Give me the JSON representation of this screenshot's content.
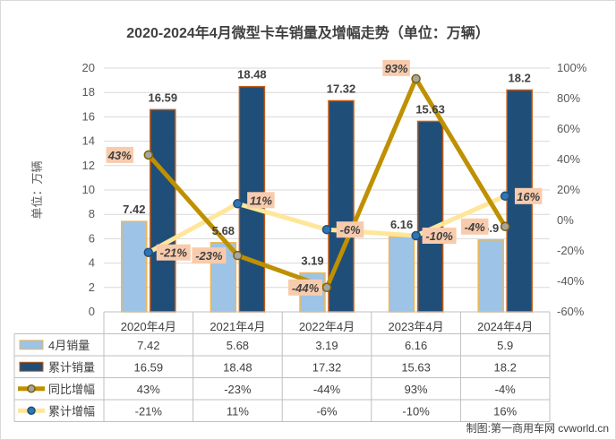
{
  "chart_data": {
    "type": "bar",
    "title": "2020-2024年4月微型卡车销量及增幅走势（单位：万辆）",
    "ylabel": "单位：万辆",
    "categories": [
      "2020年4月",
      "2021年4月",
      "2022年4月",
      "2023年4月",
      "2024年4月"
    ],
    "ylim": [
      0,
      20
    ],
    "y_ticks": [
      "0",
      "2",
      "4",
      "6",
      "8",
      "10",
      "12",
      "14",
      "16",
      "18",
      "20"
    ],
    "y2lim": [
      -60,
      100
    ],
    "y2_ticks": [
      "-60%",
      "-40%",
      "-20%",
      "0%",
      "20%",
      "40%",
      "60%",
      "80%",
      "100%"
    ],
    "grid": true,
    "series": [
      {
        "name": "4月销量",
        "type": "bar",
        "axis": "left",
        "color": "#9DC3E6",
        "values": [
          7.42,
          5.68,
          3.19,
          6.16,
          5.9
        ],
        "labels": [
          "7.42",
          "5.68",
          "3.19",
          "6.16",
          "5.9"
        ]
      },
      {
        "name": "累计销量",
        "type": "bar",
        "axis": "left",
        "color": "#1F4E79",
        "values": [
          16.59,
          18.48,
          17.32,
          15.63,
          18.2
        ],
        "labels": [
          "16.59",
          "18.48",
          "17.32",
          "15.63",
          "18.2"
        ]
      },
      {
        "name": "同比增幅",
        "type": "line",
        "axis": "right",
        "color": "#BF9000",
        "values": [
          43,
          -23,
          -44,
          93,
          -4
        ],
        "labels": [
          "43%",
          "-23%",
          "-44%",
          "93%",
          "-4%"
        ]
      },
      {
        "name": "累计增幅",
        "type": "line",
        "axis": "right",
        "color": "#FFE699",
        "values": [
          -21,
          11,
          -6,
          -10,
          16
        ],
        "labels": [
          "-21%",
          "11%",
          "-6%",
          "-10%",
          "16%"
        ]
      }
    ],
    "table": {
      "rows": [
        {
          "name": "4月销量",
          "cells": [
            "7.42",
            "5.68",
            "3.19",
            "6.16",
            "5.9"
          ]
        },
        {
          "name": "累计销量",
          "cells": [
            "16.59",
            "18.48",
            "17.32",
            "15.63",
            "18.2"
          ]
        },
        {
          "name": "同比增幅",
          "cells": [
            "43%",
            "-23%",
            "-44%",
            "93%",
            "-4%"
          ]
        },
        {
          "name": "累计增幅",
          "cells": [
            "-21%",
            "11%",
            "-6%",
            "-10%",
            "16%"
          ]
        }
      ]
    },
    "credit": "制图:第一商用车网 cvworld.cn"
  }
}
